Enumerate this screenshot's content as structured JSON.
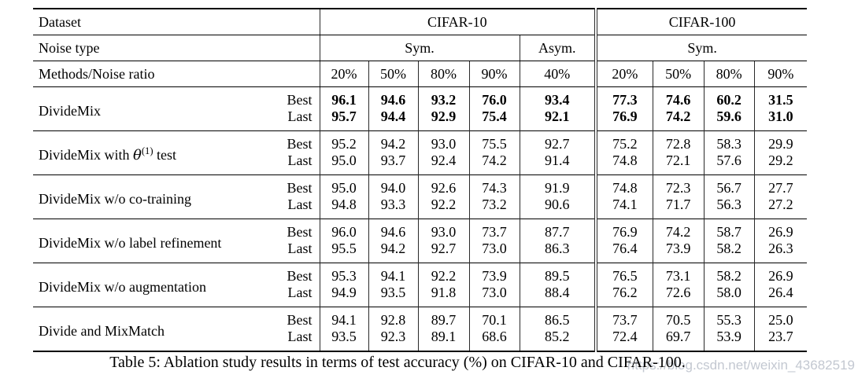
{
  "table": {
    "header": {
      "dataset_label": "Dataset",
      "noise_type_label": "Noise type",
      "methods_label": "Methods/Noise ratio",
      "cifar10": "CIFAR-10",
      "cifar100": "CIFAR-100",
      "sym_c10": "Sym.",
      "asym_c10": "Asym.",
      "sym_c100": "Sym.",
      "ratios_c10": [
        "20%",
        "50%",
        "80%",
        "90%",
        "40%"
      ],
      "ratios_c100": [
        "20%",
        "50%",
        "80%",
        "90%"
      ]
    },
    "sub_labels": {
      "best": "Best",
      "last": "Last"
    },
    "groups": [
      {
        "method": {
          "pre": "DivideMix",
          "theta": "",
          "sup": "",
          "post": ""
        },
        "bold": true,
        "best": [
          "96.1",
          "94.6",
          "93.2",
          "76.0",
          "93.4",
          "77.3",
          "74.6",
          "60.2",
          "31.5"
        ],
        "last": [
          "95.7",
          "94.4",
          "92.9",
          "75.4",
          "92.1",
          "76.9",
          "74.2",
          "59.6",
          "31.0"
        ]
      },
      {
        "method": {
          "pre": "DivideMix with ",
          "theta": "θ",
          "sup": "(1)",
          "post": " test"
        },
        "bold": false,
        "best": [
          "95.2",
          "94.2",
          "93.0",
          "75.5",
          "92.7",
          "75.2",
          "72.8",
          "58.3",
          "29.9"
        ],
        "last": [
          "95.0",
          "93.7",
          "92.4",
          "74.2",
          "91.4",
          "74.8",
          "72.1",
          "57.6",
          "29.2"
        ]
      },
      {
        "method": {
          "pre": "DivideMix w/o co-training",
          "theta": "",
          "sup": "",
          "post": ""
        },
        "bold": false,
        "best": [
          "95.0",
          "94.0",
          "92.6",
          "74.3",
          "91.9",
          "74.8",
          "72.3",
          "56.7",
          "27.7"
        ],
        "last": [
          "94.8",
          "93.3",
          "92.2",
          "73.2",
          "90.6",
          "74.1",
          "71.7",
          "56.3",
          "27.2"
        ]
      },
      {
        "method": {
          "pre": "DivideMix w/o label refinement",
          "theta": "",
          "sup": "",
          "post": ""
        },
        "bold": false,
        "best": [
          "96.0",
          "94.6",
          "93.0",
          "73.7",
          "87.7",
          "76.9",
          "74.2",
          "58.7",
          "26.9"
        ],
        "last": [
          "95.5",
          "94.2",
          "92.7",
          "73.0",
          "86.3",
          "76.4",
          "73.9",
          "58.2",
          "26.3"
        ]
      },
      {
        "method": {
          "pre": "DivideMix w/o augmentation",
          "theta": "",
          "sup": "",
          "post": ""
        },
        "bold": false,
        "best": [
          "95.3",
          "94.1",
          "92.2",
          "73.9",
          "89.5",
          "76.5",
          "73.1",
          "58.2",
          "26.9"
        ],
        "last": [
          "94.9",
          "93.5",
          "91.8",
          "73.0",
          "88.4",
          "76.2",
          "72.6",
          "58.0",
          "26.4"
        ]
      },
      {
        "method": {
          "pre": "Divide and MixMatch",
          "theta": "",
          "sup": "",
          "post": ""
        },
        "bold": false,
        "best": [
          "94.1",
          "92.8",
          "89.7",
          "70.1",
          "86.5",
          "73.7",
          "70.5",
          "55.3",
          "25.0"
        ],
        "last": [
          "93.5",
          "92.3",
          "89.1",
          "68.6",
          "85.2",
          "72.4",
          "69.7",
          "53.9",
          "23.7"
        ]
      }
    ]
  },
  "caption": "Table 5: Ablation study results in terms of test accuracy (%) on CIFAR-10 and CIFAR-100.",
  "watermark": "https://blog.csdn.net/weixin_43682519"
}
